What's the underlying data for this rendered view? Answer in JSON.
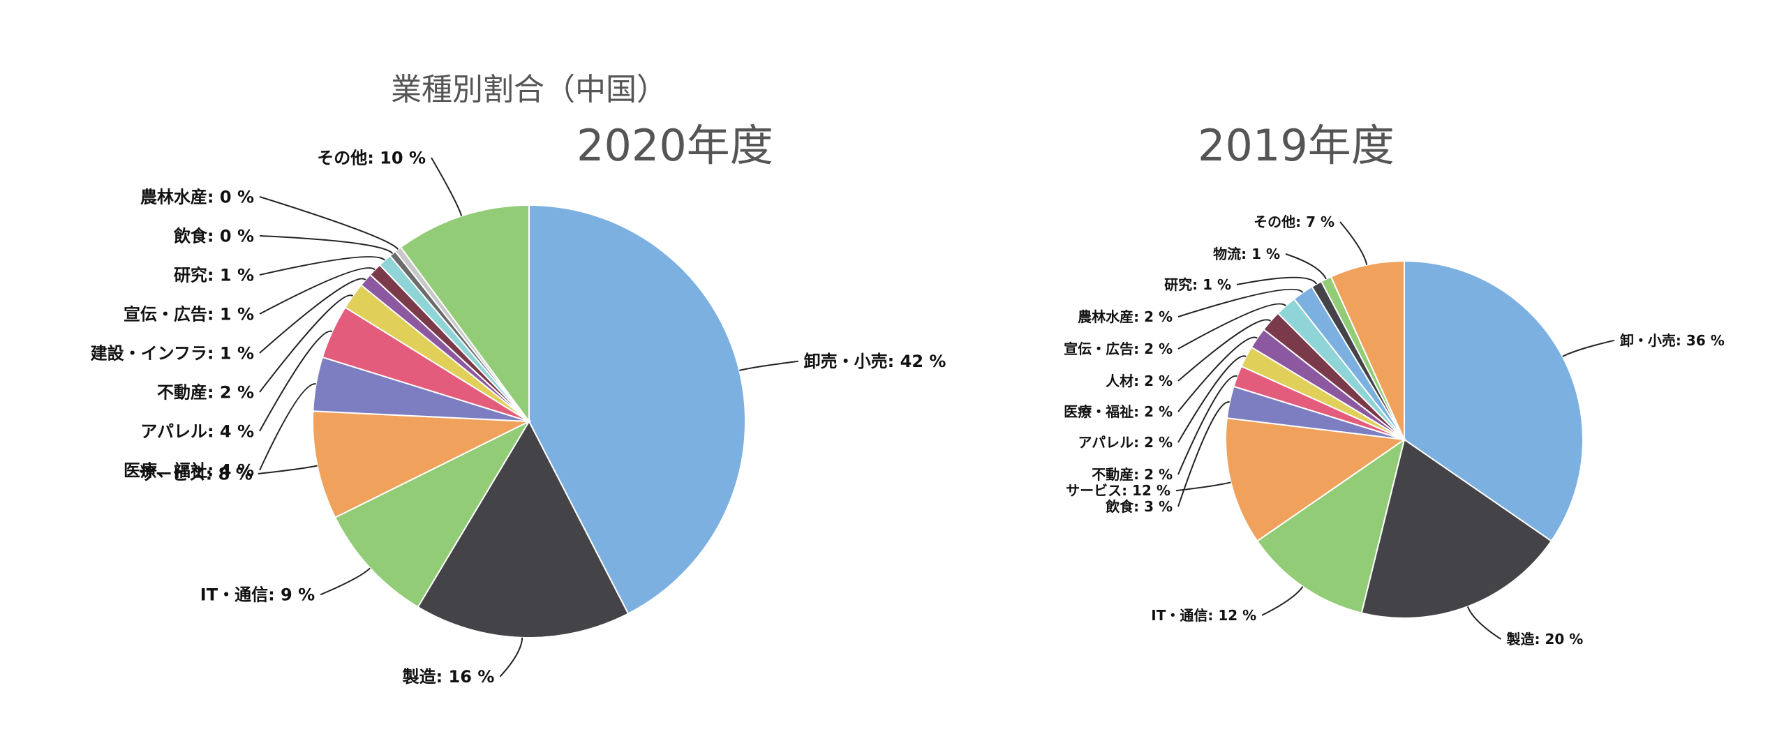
{
  "page": {
    "title": "業種別割合（中国）"
  },
  "chart_data": [
    {
      "type": "pie",
      "title": "2020年度",
      "slices": [
        {
          "label": "卸売・小売: 42 %",
          "value": 42,
          "color": "#7cb0e0"
        },
        {
          "label": "製造: 16 %",
          "value": 16,
          "color": "#434348"
        },
        {
          "label": "IT・通信: 9 %",
          "value": 9,
          "color": "#92cc76"
        },
        {
          "label": "サービス: 8 %",
          "value": 8,
          "color": "#f0a15b"
        },
        {
          "label": "医療、福祉: 4 %",
          "value": 4,
          "color": "#7d7ec2"
        },
        {
          "label": "アパレル: 4 %",
          "value": 4,
          "color": "#e45c7b"
        },
        {
          "label": "不動産: 2 %",
          "value": 2,
          "color": "#e0cf59"
        },
        {
          "label": "建設・インフラ: 1 %",
          "value": 1,
          "color": "#8c58a0"
        },
        {
          "label": "宣伝・広告: 1 %",
          "value": 1,
          "color": "#7a3a4a"
        },
        {
          "label": "研究: 1 %",
          "value": 1,
          "color": "#8fd4d6"
        },
        {
          "label": "飲食: 0 %",
          "value": 0.5,
          "color": "#6b6b6b"
        },
        {
          "label": "農林水産: 0 %",
          "value": 0.5,
          "color": "#c8c8c8"
        },
        {
          "label": "その他: 10 %",
          "value": 10,
          "color": "#92cc76"
        }
      ]
    },
    {
      "type": "pie",
      "title": "2019年度",
      "slices": [
        {
          "label": "卸・小売: 36 %",
          "value": 36,
          "color": "#7cb0e0"
        },
        {
          "label": "製造: 20 %",
          "value": 20,
          "color": "#434348"
        },
        {
          "label": "IT・通信: 12 %",
          "value": 12,
          "color": "#92cc76"
        },
        {
          "label": "サービス: 12 %",
          "value": 12,
          "color": "#f0a15b"
        },
        {
          "label": "飲食: 3 %",
          "value": 3,
          "color": "#7d7ec2"
        },
        {
          "label": "不動産: 2 %",
          "value": 2,
          "color": "#e45c7b"
        },
        {
          "label": "アパレル: 2 %",
          "value": 2,
          "color": "#e0cf59"
        },
        {
          "label": "医療・福祉: 2 %",
          "value": 2,
          "color": "#8c58a0"
        },
        {
          "label": "人材: 2 %",
          "value": 2,
          "color": "#7a3a4a"
        },
        {
          "label": "宣伝・広告: 2 %",
          "value": 2,
          "color": "#8fd4d6"
        },
        {
          "label": "農林水産: 2 %",
          "value": 2,
          "color": "#7cb0e0"
        },
        {
          "label": "研究: 1 %",
          "value": 1,
          "color": "#434348"
        },
        {
          "label": "物流: 1 %",
          "value": 1,
          "color": "#92cc76"
        },
        {
          "label": "その他: 7 %",
          "value": 7,
          "color": "#f0a15b"
        }
      ]
    }
  ]
}
